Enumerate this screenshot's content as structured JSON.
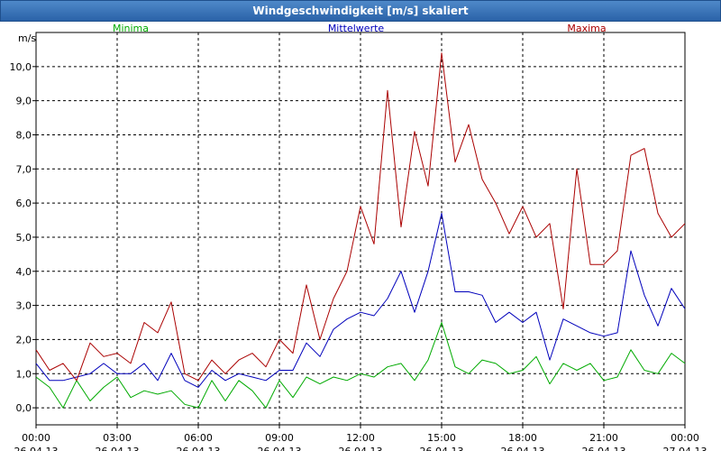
{
  "window": {
    "title": "Windgeschwindigkeit [m/s] skaliert"
  },
  "colors": {
    "minima": "#00aa00",
    "mittel": "#0000bb",
    "maxima": "#aa0000",
    "grid": "#000000"
  },
  "chart_data": {
    "type": "line",
    "title": "Windgeschwindigkeit [m/s] skaliert",
    "ylabel": "m/s",
    "xlabel": "",
    "ylim": [
      -0.5,
      11.0
    ],
    "xlim": [
      0,
      24
    ],
    "yticks": [
      0,
      1,
      2,
      3,
      4,
      5,
      6,
      7,
      8,
      9,
      10
    ],
    "yticklabels": [
      "0,0",
      "1,0",
      "2,0",
      "3,0",
      "4,0",
      "5,0",
      "6,0",
      "7,0",
      "8,0",
      "9,0",
      "10,0"
    ],
    "xticks": [
      {
        "x": 0,
        "time": "00:00",
        "date": "26.04.13"
      },
      {
        "x": 3,
        "time": "03:00",
        "date": "26.04.13"
      },
      {
        "x": 6,
        "time": "06:00",
        "date": "26.04.13"
      },
      {
        "x": 9,
        "time": "09:00",
        "date": "26.04.13"
      },
      {
        "x": 12,
        "time": "12:00",
        "date": "26.04.13"
      },
      {
        "x": 15,
        "time": "15:00",
        "date": "26.04.13"
      },
      {
        "x": 18,
        "time": "18:00",
        "date": "26.04.13"
      },
      {
        "x": 21,
        "time": "21:00",
        "date": "26.04.13"
      },
      {
        "x": 24,
        "time": "00:00",
        "date": "27.04.13"
      }
    ],
    "series": [
      {
        "name": "Minima",
        "color": "#00aa00",
        "x": [
          0,
          0.5,
          1,
          1.5,
          2,
          2.5,
          3,
          3.5,
          4,
          4.5,
          5,
          5.5,
          6,
          6.5,
          7,
          7.5,
          8,
          8.5,
          9,
          9.5,
          10,
          10.5,
          11,
          11.5,
          12,
          12.5,
          13,
          13.5,
          14,
          14.5,
          15,
          15.5,
          16,
          16.5,
          17,
          17.5,
          18,
          18.5,
          19,
          19.5,
          20,
          20.5,
          21,
          21.5,
          22,
          22.5,
          23,
          23.5,
          24
        ],
        "values": [
          0.9,
          0.6,
          0.0,
          0.8,
          0.2,
          0.6,
          0.9,
          0.3,
          0.5,
          0.4,
          0.5,
          0.1,
          0.0,
          0.8,
          0.2,
          0.8,
          0.5,
          0.0,
          0.8,
          0.3,
          0.9,
          0.7,
          0.9,
          0.8,
          1.0,
          0.9,
          1.2,
          1.3,
          0.8,
          1.4,
          2.5,
          1.2,
          1.0,
          1.4,
          1.3,
          1.0,
          1.1,
          1.5,
          0.7,
          1.3,
          1.1,
          1.3,
          0.8,
          0.9,
          1.7,
          1.1,
          1.0,
          1.6,
          1.3
        ]
      },
      {
        "name": "Mittelwerte",
        "color": "#0000bb",
        "x": [
          0,
          0.5,
          1,
          1.5,
          2,
          2.5,
          3,
          3.5,
          4,
          4.5,
          5,
          5.5,
          6,
          6.5,
          7,
          7.5,
          8,
          8.5,
          9,
          9.5,
          10,
          10.5,
          11,
          11.5,
          12,
          12.5,
          13,
          13.5,
          14,
          14.5,
          15,
          15.5,
          16,
          16.5,
          17,
          17.5,
          18,
          18.5,
          19,
          19.5,
          20,
          20.5,
          21,
          21.5,
          22,
          22.5,
          23,
          23.5,
          24
        ],
        "values": [
          1.3,
          0.8,
          0.8,
          0.9,
          1.0,
          1.3,
          1.0,
          1.0,
          1.3,
          0.8,
          1.6,
          0.8,
          0.6,
          1.1,
          0.8,
          1.0,
          0.9,
          0.8,
          1.1,
          1.1,
          1.9,
          1.5,
          2.3,
          2.6,
          2.8,
          2.7,
          3.2,
          4.0,
          2.8,
          4.0,
          5.7,
          3.4,
          3.4,
          3.3,
          2.5,
          2.8,
          2.5,
          2.8,
          1.4,
          2.6,
          2.4,
          2.2,
          2.1,
          2.2,
          4.6,
          3.3,
          2.4,
          3.5,
          2.9
        ]
      },
      {
        "name": "Maxima",
        "color": "#aa0000",
        "x": [
          0,
          0.5,
          1,
          1.5,
          2,
          2.5,
          3,
          3.5,
          4,
          4.5,
          5,
          5.5,
          6,
          6.5,
          7,
          7.5,
          8,
          8.5,
          9,
          9.5,
          10,
          10.5,
          11,
          11.5,
          12,
          12.5,
          13,
          13.5,
          14,
          14.5,
          15,
          15.5,
          16,
          16.5,
          17,
          17.5,
          18,
          18.5,
          19,
          19.5,
          20,
          20.5,
          21,
          21.5,
          22,
          22.5,
          23,
          23.5,
          24
        ],
        "values": [
          1.7,
          1.1,
          1.3,
          0.8,
          1.9,
          1.5,
          1.6,
          1.3,
          2.5,
          2.2,
          3.1,
          1.0,
          0.8,
          1.4,
          1.0,
          1.4,
          1.6,
          1.2,
          2.0,
          1.6,
          3.6,
          2.0,
          3.2,
          4.0,
          5.9,
          4.8,
          9.3,
          5.3,
          8.1,
          6.5,
          10.4,
          7.2,
          8.3,
          6.7,
          6.0,
          5.1,
          5.9,
          5.0,
          5.4,
          2.9,
          7.0,
          4.2,
          4.2,
          4.6,
          7.4,
          7.6,
          5.7,
          5.0,
          5.4
        ]
      }
    ]
  }
}
